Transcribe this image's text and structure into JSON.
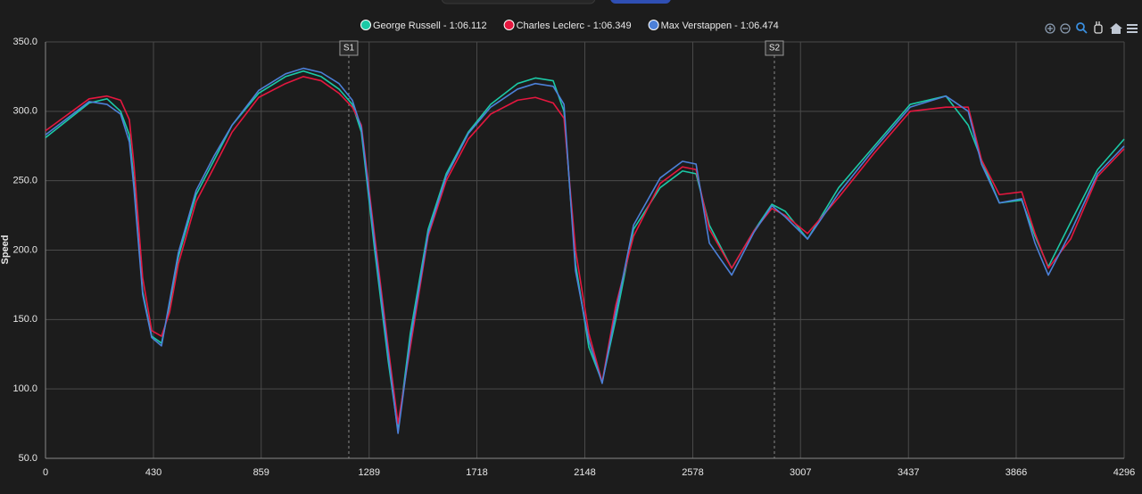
{
  "chart_data": {
    "type": "line",
    "y_label": "Speed",
    "x": [
      0,
      174,
      245,
      299,
      334,
      352,
      387,
      423,
      462,
      494,
      529,
      600,
      672,
      743,
      849,
      956,
      1027,
      1098,
      1169,
      1222,
      1258,
      1311,
      1365,
      1404,
      1453,
      1524,
      1596,
      1684,
      1773,
      1880,
      1951,
      2022,
      2065,
      2111,
      2164,
      2217,
      2271,
      2342,
      2448,
      2537,
      2591,
      2644,
      2733,
      2822,
      2893,
      2946,
      3035,
      3159,
      3301,
      3444,
      3586,
      3675,
      3728,
      3799,
      3888,
      3941,
      3994,
      4083,
      4190,
      4296
    ],
    "series": [
      {
        "name": "George Russell - 1:06.112",
        "color": "#1bc9a6",
        "values": [
          281,
          306,
          309,
          300,
          283,
          250,
          170,
          138,
          133,
          160,
          195,
          240,
          265,
          290,
          313,
          325,
          329,
          325,
          316,
          305,
          285,
          200,
          120,
          70,
          140,
          215,
          255,
          285,
          305,
          320,
          324,
          322,
          300,
          190,
          130,
          105,
          150,
          215,
          245,
          257,
          255,
          218,
          187,
          214,
          233,
          228,
          208,
          245,
          275,
          305,
          311,
          290,
          265,
          234,
          236,
          210,
          188,
          220,
          258,
          280
        ]
      },
      {
        "name": "Charles Leclerc - 1:06.349",
        "color": "#e5173f",
        "values": [
          286,
          309,
          311,
          308,
          294,
          262,
          180,
          142,
          138,
          155,
          190,
          235,
          260,
          285,
          310,
          320,
          325,
          322,
          313,
          303,
          290,
          210,
          130,
          75,
          130,
          210,
          250,
          280,
          298,
          308,
          310,
          306,
          295,
          200,
          140,
          105,
          160,
          210,
          248,
          260,
          258,
          215,
          187,
          214,
          230,
          225,
          212,
          238,
          270,
          300,
          303,
          303,
          265,
          240,
          242,
          212,
          187,
          208,
          253,
          273
        ]
      },
      {
        "name": "Max Verstappen - 1:06.474",
        "color": "#4c80d8",
        "values": [
          283,
          307,
          305,
          298,
          278,
          245,
          168,
          137,
          131,
          163,
          198,
          243,
          268,
          290,
          315,
          327,
          331,
          328,
          320,
          308,
          288,
          205,
          125,
          68,
          135,
          212,
          253,
          284,
          303,
          316,
          320,
          318,
          305,
          185,
          135,
          104,
          155,
          218,
          252,
          264,
          262,
          205,
          182,
          213,
          232,
          224,
          208,
          241,
          273,
          303,
          311,
          300,
          262,
          234,
          237,
          205,
          182,
          213,
          255,
          275
        ]
      }
    ],
    "xlim": [
      0,
      4296
    ],
    "xticks": [
      0,
      430,
      859,
      1289,
      1718,
      2148,
      2578,
      3007,
      3437,
      3866,
      4296
    ],
    "ylim": [
      50,
      350
    ],
    "yticks": [
      {
        "value": 50,
        "label": "50.0"
      },
      {
        "value": 100,
        "label": "100.0"
      },
      {
        "value": 150,
        "label": "150.0"
      },
      {
        "value": 200,
        "label": "200.0"
      },
      {
        "value": 250,
        "label": "250.0"
      },
      {
        "value": 300,
        "label": "300.0"
      },
      {
        "value": 350,
        "label": "350.0"
      }
    ],
    "annotations": [
      {
        "x": 1208,
        "label": "S1"
      },
      {
        "x": 2903,
        "label": "S2"
      }
    ],
    "grid": true
  }
}
